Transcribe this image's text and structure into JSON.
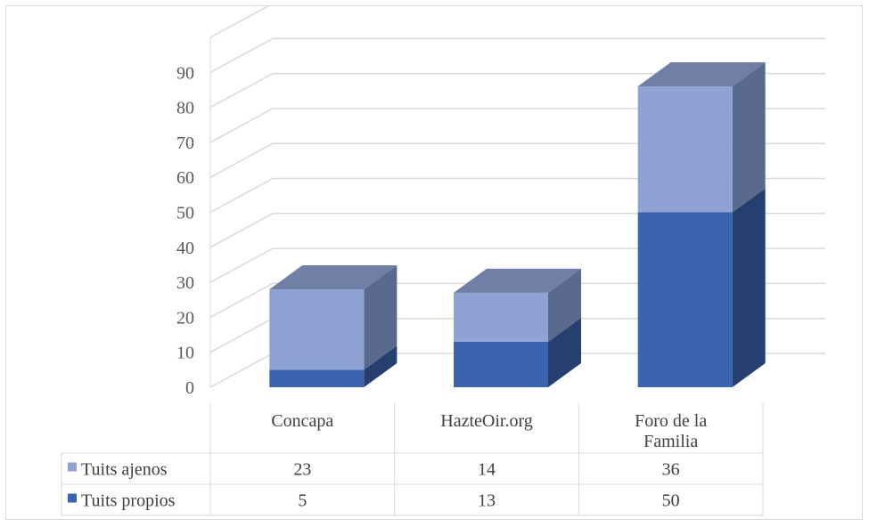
{
  "chart_data": {
    "type": "bar",
    "stacked": true,
    "three_d": true,
    "categories": [
      "Concapa",
      "HazteOir.org",
      "Foro de la Familia"
    ],
    "series": [
      {
        "name": "Tuits propios",
        "values": [
          5,
          13,
          50
        ]
      },
      {
        "name": "Tuits ajenos",
        "values": [
          23,
          14,
          36
        ]
      }
    ],
    "ylim": [
      0,
      100
    ],
    "yticks": [
      0,
      10,
      20,
      30,
      40,
      50,
      60,
      70,
      80,
      90
    ],
    "grid": true,
    "legend": "data-table",
    "colors": {
      "Tuits propios": {
        "front": "#3a64ad",
        "side": "#253f6f",
        "top": "#2f528f"
      },
      "Tuits ajenos": {
        "front": "#8fa2d4",
        "side": "#5a6a8c",
        "top": "#6f7fa6"
      },
      "grid": "#d9d9d9",
      "table_border": "#d9d9d9"
    }
  }
}
